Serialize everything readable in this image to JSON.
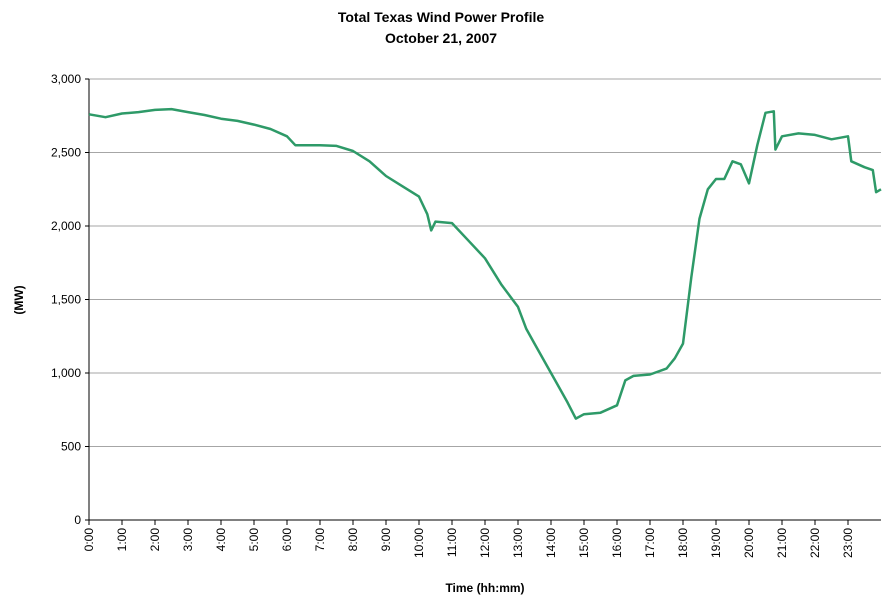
{
  "chart_data": {
    "type": "line",
    "title": "Total Texas Wind Power Profile",
    "subtitle": "October 21, 2007",
    "x_label": "Time (hh:mm)",
    "y_label": "(MW)",
    "grid": true,
    "xlim": [
      0,
      24
    ],
    "ylim": [
      0,
      3000
    ],
    "xticks": [
      {
        "value": 0,
        "label": "0:00"
      },
      {
        "value": 1,
        "label": "1:00"
      },
      {
        "value": 2,
        "label": "2:00"
      },
      {
        "value": 3,
        "label": "3:00"
      },
      {
        "value": 4,
        "label": "4:00"
      },
      {
        "value": 5,
        "label": "5:00"
      },
      {
        "value": 6,
        "label": "6:00"
      },
      {
        "value": 7,
        "label": "7:00"
      },
      {
        "value": 8,
        "label": "8:00"
      },
      {
        "value": 9,
        "label": "9:00"
      },
      {
        "value": 10,
        "label": "10:00"
      },
      {
        "value": 11,
        "label": "11:00"
      },
      {
        "value": 12,
        "label": "12:00"
      },
      {
        "value": 13,
        "label": "13:00"
      },
      {
        "value": 14,
        "label": "14:00"
      },
      {
        "value": 15,
        "label": "15:00"
      },
      {
        "value": 16,
        "label": "16:00"
      },
      {
        "value": 17,
        "label": "17:00"
      },
      {
        "value": 18,
        "label": "18:00"
      },
      {
        "value": 19,
        "label": "19:00"
      },
      {
        "value": 20,
        "label": "20:00"
      },
      {
        "value": 21,
        "label": "21:00"
      },
      {
        "value": 22,
        "label": "22:00"
      },
      {
        "value": 23,
        "label": "23:00"
      }
    ],
    "yticks": [
      0,
      500,
      {
        "value": 1000,
        "label": "1,000"
      },
      {
        "value": 1500,
        "label": "1,500"
      },
      {
        "value": 2000,
        "label": "2,000"
      },
      {
        "value": 2500,
        "label": "2,500"
      },
      {
        "value": 3000,
        "label": "3,000"
      }
    ],
    "x": [
      0,
      0.5,
      1,
      1.5,
      2,
      2.5,
      3,
      3.5,
      4,
      4.5,
      5,
      5.5,
      6,
      6.25,
      6.5,
      7,
      7.5,
      8,
      8.5,
      9,
      9.5,
      10,
      10.25,
      10.37,
      10.5,
      11,
      11.5,
      12,
      12.5,
      13,
      13.25,
      13.5,
      14,
      14.25,
      14.5,
      14.75,
      15,
      15.5,
      16,
      16.25,
      16.5,
      17,
      17.5,
      17.75,
      18,
      18.25,
      18.5,
      18.75,
      19,
      19.25,
      19.5,
      19.75,
      20,
      20.25,
      20.5,
      20.75,
      20.8,
      21,
      21.5,
      22,
      22.5,
      23,
      23.1,
      23.5,
      23.75,
      23.85,
      24
    ],
    "series": [
      {
        "name": "Total Texas Wind Power",
        "color": "#2e9a68",
        "values": [
          2760,
          2740,
          2765,
          2775,
          2790,
          2795,
          2775,
          2755,
          2730,
          2715,
          2690,
          2660,
          2610,
          2550,
          2550,
          2550,
          2545,
          2510,
          2440,
          2340,
          2270,
          2200,
          2080,
          1970,
          2030,
          2020,
          1900,
          1780,
          1600,
          1450,
          1300,
          1200,
          1000,
          900,
          800,
          690,
          720,
          730,
          780,
          950,
          980,
          990,
          1030,
          1100,
          1200,
          1650,
          2050,
          2250,
          2320,
          2320,
          2440,
          2420,
          2290,
          2550,
          2770,
          2780,
          2520,
          2610,
          2630,
          2620,
          2590,
          2610,
          2440,
          2400,
          2380,
          2230,
          2250
        ]
      }
    ]
  }
}
